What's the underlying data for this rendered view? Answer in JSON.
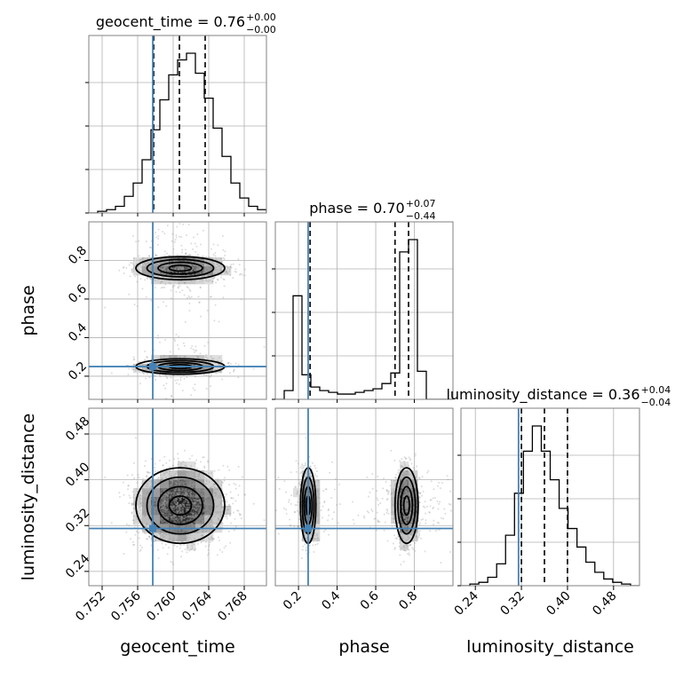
{
  "colors": {
    "truth": "#4682b4",
    "hist": "#000000",
    "grid": "#b0b0b0",
    "scatter": "#9a9a9a",
    "frame": "#808080"
  },
  "chart_data": {
    "type": "corner",
    "parameters": [
      "geocent_time",
      "phase",
      "luminosity_distance"
    ],
    "axis_labels": {
      "geocent_time": "geocent_time",
      "phase": "phase",
      "luminosity_distance": "luminosity_distance"
    },
    "titles": [
      {
        "param": "geocent_time",
        "text": "geocent_time = 0.76",
        "sup": "+0.00",
        "sub": "−0.00"
      },
      {
        "param": "phase",
        "text": "phase = 0.70",
        "sup": "+0.07",
        "sub": "−0.44"
      },
      {
        "param": "luminosity_distance",
        "text": "luminosity_distance = 0.36",
        "sup": "+0.04",
        "sub": "−0.04"
      }
    ],
    "ranges": {
      "geocent_time": [
        0.7505,
        0.7705
      ],
      "phase": [
        0.08,
        1.0
      ],
      "luminosity_distance": [
        0.215,
        0.525
      ]
    },
    "ticks": {
      "geocent_time": [
        0.752,
        0.756,
        0.76,
        0.764,
        0.768
      ],
      "geocent_time_labels": [
        "0.752",
        "0.756",
        "0.760",
        "0.764",
        "0.768"
      ],
      "phase": [
        0.2,
        0.4,
        0.6,
        0.8
      ],
      "phase_labels": [
        "0.2",
        "0.4",
        "0.6",
        "0.8"
      ],
      "luminosity_distance": [
        0.24,
        0.32,
        0.4,
        0.48
      ],
      "luminosity_distance_labels": [
        "0.24",
        "0.32",
        "0.40",
        "0.48"
      ]
    },
    "truths": {
      "geocent_time": 0.7577,
      "phase": 0.25,
      "luminosity_distance": 0.315
    },
    "quantiles": {
      "geocent_time": [
        0.7578,
        0.7607,
        0.7636
      ],
      "phase": [
        0.26,
        0.7,
        0.77
      ],
      "luminosity_distance": [
        0.32,
        0.36,
        0.4
      ]
    },
    "histograms": {
      "geocent_time": {
        "edges_start": 0.7505,
        "bin_width": 0.001,
        "counts": [
          0,
          1,
          2,
          4,
          10,
          18,
          32,
          50,
          68,
          83,
          92,
          96,
          84,
          69,
          51,
          34,
          18,
          9,
          4,
          2
        ]
      },
      "phase": {
        "edges_start": 0.08,
        "bin_width": 0.046,
        "counts": [
          0,
          5,
          59,
          14,
          7,
          5,
          4,
          3,
          3,
          4,
          5,
          6,
          9,
          15,
          84,
          91,
          16,
          0,
          0,
          0
        ]
      },
      "luminosity_distance": {
        "edges_start": 0.215,
        "bin_width": 0.0155,
        "counts": [
          0,
          1,
          2,
          5,
          13,
          30,
          55,
          80,
          95,
          80,
          63,
          46,
          34,
          23,
          14,
          8,
          4,
          2,
          1,
          0
        ]
      }
    },
    "posterior_modes": [
      {
        "geocent_time": 0.7608,
        "phase": 0.76,
        "luminosity_distance": 0.355,
        "weight": 0.6,
        "sd": [
          0.0025,
          0.03,
          0.033
        ]
      },
      {
        "geocent_time": 0.7608,
        "phase": 0.25,
        "luminosity_distance": 0.355,
        "weight": 0.4,
        "sd": [
          0.0025,
          0.02,
          0.033
        ]
      }
    ],
    "grid": true
  }
}
